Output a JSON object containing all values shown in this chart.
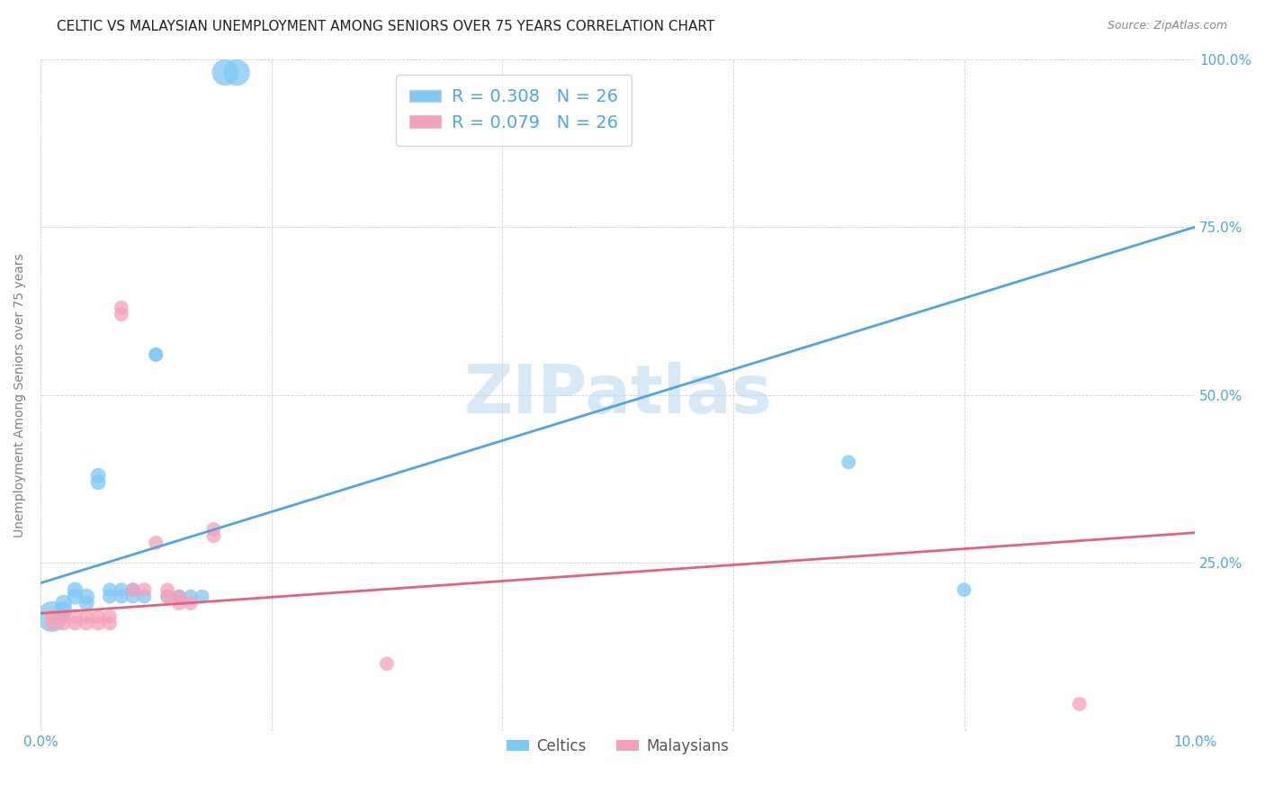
{
  "title": "CELTIC VS MALAYSIAN UNEMPLOYMENT AMONG SENIORS OVER 75 YEARS CORRELATION CHART",
  "source": "Source: ZipAtlas.com",
  "ylabel": "Unemployment Among Seniors over 75 years",
  "xlim": [
    0.0,
    0.1
  ],
  "ylim": [
    0.0,
    1.0
  ],
  "celtics_color": "#7ec8f5",
  "malaysians_color": "#f5a0b8",
  "celtics_line_color": "#4da6e8",
  "malaysians_line_color": "#e8607a",
  "R_celtics": 0.308,
  "N_celtics": 26,
  "R_malaysians": 0.079,
  "N_malaysians": 26,
  "celtics_x": [
    0.001,
    0.002,
    0.002,
    0.003,
    0.003,
    0.004,
    0.004,
    0.005,
    0.005,
    0.006,
    0.006,
    0.007,
    0.007,
    0.008,
    0.008,
    0.009,
    0.01,
    0.01,
    0.011,
    0.012,
    0.013,
    0.014,
    0.016,
    0.017,
    0.07,
    0.08
  ],
  "celtics_y": [
    0.17,
    0.18,
    0.19,
    0.2,
    0.21,
    0.2,
    0.19,
    0.38,
    0.37,
    0.2,
    0.21,
    0.21,
    0.2,
    0.21,
    0.2,
    0.2,
    0.56,
    0.56,
    0.2,
    0.2,
    0.2,
    0.2,
    0.98,
    0.98,
    0.4,
    0.21
  ],
  "celtics_sizes": [
    600,
    200,
    180,
    170,
    160,
    160,
    150,
    150,
    150,
    130,
    130,
    130,
    130,
    130,
    130,
    130,
    130,
    130,
    130,
    130,
    130,
    130,
    450,
    450,
    130,
    130
  ],
  "malaysians_x": [
    0.001,
    0.001,
    0.002,
    0.002,
    0.003,
    0.003,
    0.004,
    0.004,
    0.005,
    0.005,
    0.006,
    0.006,
    0.007,
    0.007,
    0.008,
    0.009,
    0.01,
    0.011,
    0.011,
    0.012,
    0.012,
    0.013,
    0.015,
    0.015,
    0.03,
    0.09
  ],
  "malaysians_y": [
    0.17,
    0.16,
    0.16,
    0.17,
    0.16,
    0.17,
    0.17,
    0.16,
    0.16,
    0.17,
    0.16,
    0.17,
    0.63,
    0.62,
    0.21,
    0.21,
    0.28,
    0.21,
    0.2,
    0.2,
    0.19,
    0.19,
    0.3,
    0.29,
    0.1,
    0.04
  ],
  "malaysians_sizes": [
    130,
    130,
    130,
    130,
    130,
    130,
    130,
    130,
    130,
    130,
    130,
    130,
    130,
    130,
    130,
    130,
    130,
    130,
    130,
    130,
    130,
    130,
    130,
    130,
    130,
    130
  ],
  "blue_trendline_x": [
    0.0,
    0.1
  ],
  "blue_trendline_y": [
    0.22,
    0.75
  ],
  "pink_trendline_x": [
    0.0,
    0.1
  ],
  "pink_trendline_y": [
    0.175,
    0.295
  ],
  "background_color": "#ffffff",
  "watermark": "ZIPatlas",
  "title_fontsize": 11,
  "axis_label_fontsize": 10,
  "tick_fontsize": 11,
  "tick_color": "#4da6e8",
  "grid_color": "#d0d0d0"
}
